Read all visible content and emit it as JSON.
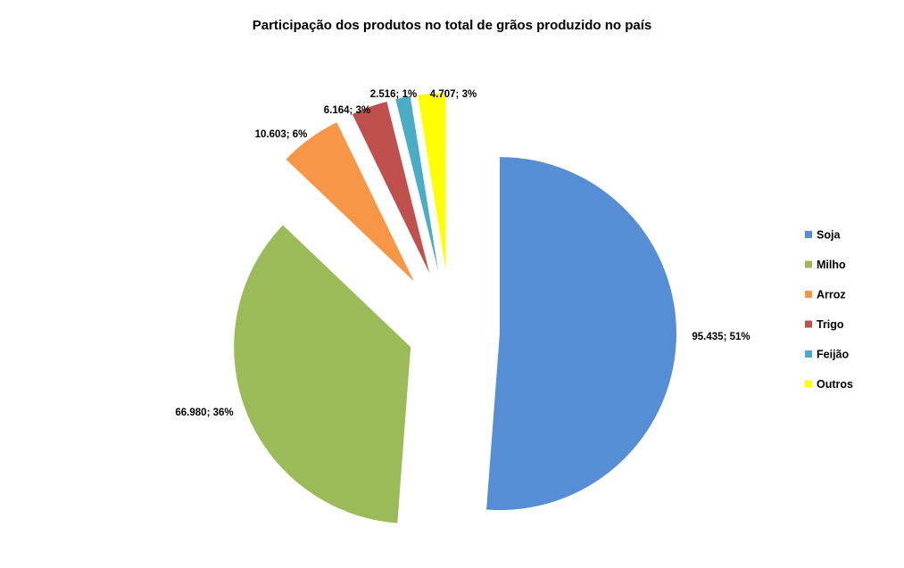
{
  "chart_data": {
    "type": "pie",
    "title": "Participação dos produtos no total de grãos produzido no país",
    "categories": [
      "Soja",
      "Milho",
      "Arroz",
      "Trigo",
      "Feijão",
      "Outros"
    ],
    "values": [
      95435,
      66980,
      10603,
      6164,
      2516,
      4707
    ],
    "data_labels": [
      "95.435; 51%",
      "66.980; 36%",
      "10.603; 6%",
      "6.164; 3%",
      "2.516; 1%",
      "4.707; 3%"
    ],
    "colors": [
      "#558ED5",
      "#9BBB59",
      "#F79646",
      "#C0504D",
      "#4BACC6",
      "#FFFF00"
    ],
    "exploded": true,
    "legend_position": "right"
  }
}
